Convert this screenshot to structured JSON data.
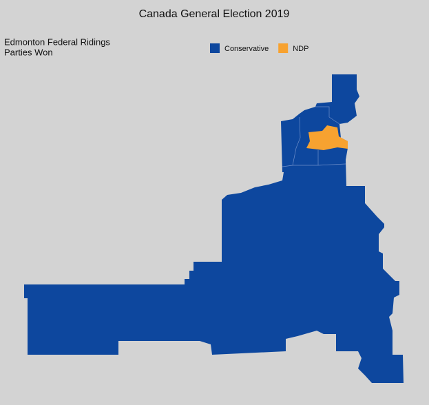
{
  "title": "Canada General Election 2019",
  "subtitle": [
    "Edmonton Federal Ridings",
    "Parties Won"
  ],
  "legend": [
    {
      "name": "Conservative",
      "color": "#0d479e"
    },
    {
      "name": "NDP",
      "color": "#f7a230"
    }
  ]
}
